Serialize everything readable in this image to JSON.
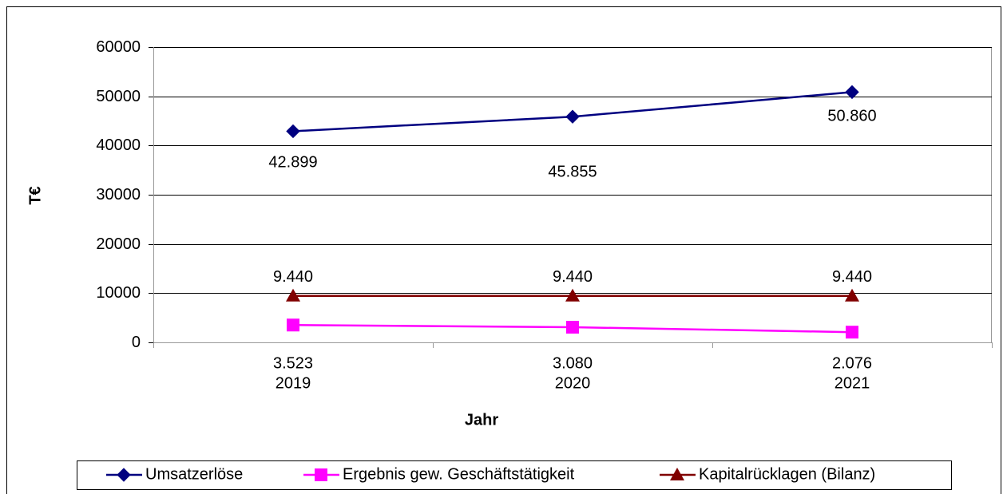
{
  "chart_data": {
    "type": "line",
    "x_label": "Jahr",
    "y_label": "T€",
    "categories": [
      "2019",
      "2020",
      "2021"
    ],
    "series": [
      {
        "name": "Umsatzerlöse",
        "color": "#000080",
        "marker": "diamond",
        "values": [
          42899,
          45855,
          50860
        ],
        "value_labels": [
          "42.899",
          "45.855",
          "50.860"
        ]
      },
      {
        "name": "Ergebnis gew. Geschäftstätigkeit",
        "color": "#ff00ff",
        "marker": "square",
        "values": [
          3523,
          3080,
          2076
        ],
        "value_labels": [
          "3.523",
          "3.080",
          "2.076"
        ]
      },
      {
        "name": "Kapitalrücklagen (Bilanz)",
        "color": "#800000",
        "marker": "triangle",
        "values": [
          9440,
          9440,
          9440
        ],
        "value_labels": [
          "9.440",
          "9.440",
          "9.440"
        ]
      }
    ],
    "ylim": [
      0,
      60000
    ],
    "yticks": [
      0,
      10000,
      20000,
      30000,
      40000,
      50000,
      60000
    ],
    "grid": true,
    "legend": "bottom"
  }
}
